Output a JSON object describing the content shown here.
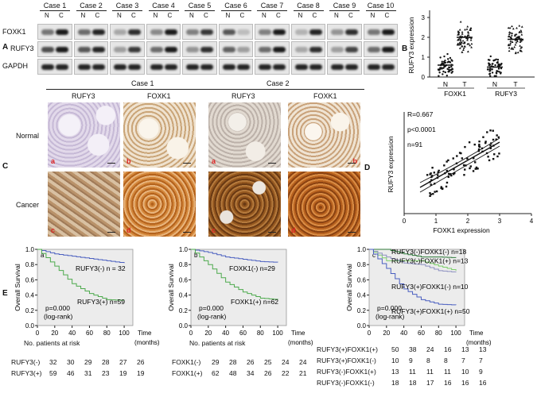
{
  "panel_a": {
    "letter": "A",
    "cases": [
      "Case 1",
      "Case 2",
      "Case 3",
      "Case 4",
      "Case 5",
      "Case 6",
      "Case 7",
      "Case 8",
      "Case 9",
      "Case 10"
    ],
    "lane_n": "N",
    "lane_c": "C",
    "rows": [
      "FOXK1",
      "RUFY3",
      "GAPDH"
    ]
  },
  "panel_b": {
    "letter": "B",
    "ylabel": "RUFY3 expression",
    "yticks": [
      "0",
      "1",
      "2",
      "3"
    ],
    "xticks": [
      "N",
      "T",
      "N",
      "T"
    ],
    "groups": [
      "FOXK1",
      "RUFY3"
    ]
  },
  "panel_c": {
    "letter": "C",
    "case1": "Case 1",
    "case2": "Case 2",
    "col_labels": [
      "RUFY3",
      "FOXK1",
      "RUFY3",
      "FOXK1"
    ],
    "row_normal": "Normal",
    "row_cancer": "Cancer",
    "sub_normal": [
      "a",
      "b",
      "a",
      "b"
    ],
    "sub_cancer": [
      "c",
      "d",
      "c",
      "d"
    ]
  },
  "panel_d": {
    "letter": "D",
    "r": "R=0.667",
    "p": "p<0.0001",
    "n": "n=91",
    "ylabel": "RUFY3 expression",
    "xlabel": "FOXK1 expression",
    "xticks": [
      "0",
      "1",
      "2",
      "3",
      "4"
    ]
  },
  "panel_e": {
    "letter": "E",
    "ylabel": "Overall Survival",
    "yticks": [
      "0.0",
      "0.2",
      "0.4",
      "0.6",
      "0.8",
      "1.0"
    ],
    "xticks": [
      "0",
      "20",
      "40",
      "60",
      "80",
      "100"
    ],
    "time": "Time",
    "months": "(months)",
    "at_risk": "No. patients at risk",
    "pval": "p=0.000",
    "logrank": "(log-rank)",
    "plot_a": {
      "sub": "a",
      "label_hi": "RUFY3(-)  n = 32",
      "label_lo": "RUFY3(+) n=59",
      "risk": [
        {
          "name": "RUFY3(-)",
          "values": [
            "32",
            "30",
            "29",
            "28",
            "27",
            "26"
          ]
        },
        {
          "name": "RUFY3(+)",
          "values": [
            "59",
            "46",
            "31",
            "23",
            "19",
            "19"
          ]
        }
      ]
    },
    "plot_b": {
      "sub": "b",
      "label_hi": "FOXK1(-)  n=29",
      "label_lo": "FOXK1(+) n=62",
      "risk": [
        {
          "name": "FOXK1(-)",
          "values": [
            "29",
            "28",
            "26",
            "25",
            "24",
            "24"
          ]
        },
        {
          "name": "FOXK1(+)",
          "values": [
            "62",
            "48",
            "34",
            "26",
            "22",
            "21"
          ]
        }
      ]
    },
    "plot_c": {
      "sub": "c",
      "labels": [
        "RUFY3(-)FOXK1(-)  n=18",
        "RUFY3(-)FOXK1(+)  n=13",
        "RUFY3(+)FOXK1(-)   n=10",
        "RUFY3(+)FOXK1(+)  n=50"
      ],
      "risk": [
        {
          "name": "RUFY3(+)FOXK1(+)",
          "values": [
            "50",
            "38",
            "24",
            "16",
            "13",
            "13"
          ]
        },
        {
          "name": "RUFY3(+)FOXK1(-)",
          "values": [
            "10",
            "9",
            "8",
            "8",
            "7",
            "7"
          ]
        },
        {
          "name": "RUFY3(-)FOXK1(+)",
          "values": [
            "13",
            "11",
            "11",
            "11",
            "10",
            "9"
          ]
        },
        {
          "name": "RUFY3(-)FOXK1(-)",
          "values": [
            "18",
            "18",
            "17",
            "16",
            "16",
            "16"
          ]
        }
      ]
    }
  },
  "chart_data": [
    {
      "type": "scatter",
      "title": "",
      "ylabel": "RUFY3 expression",
      "categories": [
        "FOXK1 N",
        "FOXK1 T",
        "RUFY3 N",
        "RUFY3 T"
      ],
      "ylim": [
        0,
        3
      ],
      "series": [
        {
          "values": [
            0.6,
            2.0,
            0.5,
            1.9
          ]
        }
      ]
    },
    {
      "type": "scatter",
      "xlabel": "FOXK1 expression",
      "ylabel": "RUFY3 expression",
      "xlim": [
        0,
        4
      ],
      "ylim": [
        0,
        3
      ],
      "annotations": [
        "R=0.667",
        "p<0.0001",
        "n=91"
      ]
    },
    {
      "type": "line",
      "ylabel": "Overall Survival",
      "xlim": [
        0,
        100
      ],
      "ylim": [
        0,
        1
      ],
      "series": [
        {
          "name": "RUFY3(-)",
          "x": [
            0,
            20,
            40,
            60,
            80,
            100
          ],
          "values": [
            1.0,
            0.94,
            0.91,
            0.88,
            0.85,
            0.82
          ]
        },
        {
          "name": "RUFY3(+)",
          "x": [
            0,
            20,
            40,
            60,
            80,
            100
          ],
          "values": [
            1.0,
            0.78,
            0.55,
            0.42,
            0.34,
            0.33
          ]
        }
      ]
    },
    {
      "type": "line",
      "ylabel": "Overall Survival",
      "xlim": [
        0,
        100
      ],
      "ylim": [
        0,
        1
      ],
      "series": [
        {
          "name": "FOXK1(-)",
          "x": [
            0,
            20,
            40,
            60,
            80,
            100
          ],
          "values": [
            1.0,
            0.96,
            0.9,
            0.87,
            0.84,
            0.83
          ]
        },
        {
          "name": "FOXK1(+)",
          "x": [
            0,
            20,
            40,
            60,
            80,
            100
          ],
          "values": [
            1.0,
            0.8,
            0.57,
            0.44,
            0.36,
            0.34
          ]
        }
      ]
    },
    {
      "type": "line",
      "ylabel": "Overall Survival",
      "xlim": [
        0,
        100
      ],
      "ylim": [
        0,
        1
      ],
      "series": [
        {
          "name": "RUFY3(-)FOXK1(-)",
          "x": [
            0,
            20,
            40,
            60,
            80,
            100
          ],
          "values": [
            1.0,
            1.0,
            0.94,
            0.9,
            0.9,
            0.89
          ]
        },
        {
          "name": "RUFY3(-)FOXK1(+)",
          "x": [
            0,
            20,
            40,
            60,
            80,
            100
          ],
          "values": [
            1.0,
            0.85,
            0.85,
            0.85,
            0.78,
            0.72
          ]
        },
        {
          "name": "RUFY3(+)FOXK1(-)",
          "x": [
            0,
            20,
            40,
            60,
            80,
            100
          ],
          "values": [
            1.0,
            0.9,
            0.82,
            0.8,
            0.72,
            0.7
          ]
        },
        {
          "name": "RUFY3(+)FOXK1(+)",
          "x": [
            0,
            20,
            40,
            60,
            80,
            100
          ],
          "values": [
            1.0,
            0.75,
            0.48,
            0.34,
            0.28,
            0.27
          ]
        }
      ]
    }
  ]
}
